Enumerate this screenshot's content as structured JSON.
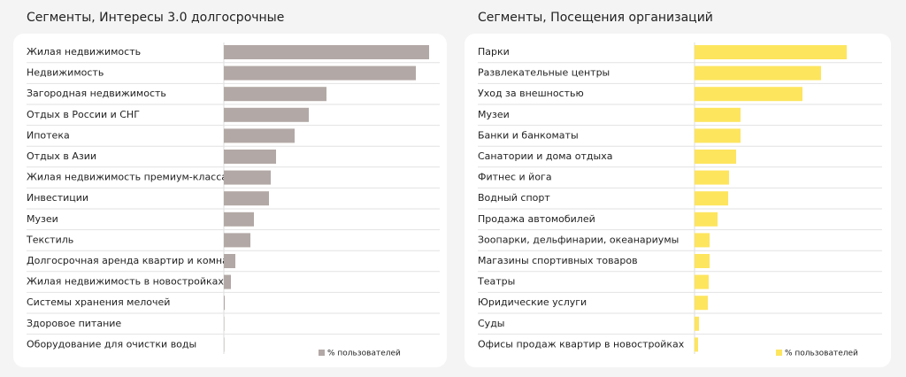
{
  "chart_data": [
    {
      "type": "bar",
      "title": "Сегменты, Интересы 3.0 долгосрочные",
      "categories": [
        "Жилая недвижимость",
        "Недвижимость",
        "Загородная недвижимость",
        "Отдых в России и СНГ",
        "Ипотека",
        "Отдых в Азии",
        "Жилая недвижимость премиум-класса",
        "Инвестиции",
        "Музеи",
        "Текстиль",
        "Долгосрочная аренда квартир и комнат",
        "Жилая недвижимость в новостройках",
        "Системы хранения мелочей",
        "Здоровое питание",
        "Оборудование для очистки воды"
      ],
      "values": [
        232,
        217,
        116,
        96,
        80,
        59,
        53,
        51,
        34,
        30,
        13,
        8,
        1,
        0.5,
        0.5
      ],
      "color": "#b2a8a5",
      "xlim": [
        0,
        240
      ],
      "legend_label": "% пользователей"
    },
    {
      "type": "bar",
      "title": "Сегменты, Посещения организаций",
      "categories": [
        "Парки",
        "Развлекательные центры",
        "Уход за внешностью",
        "Музеи",
        "Банки и банкоматы",
        "Санатории и дома отдыха",
        "Фитнес и йога",
        "Водный спорт",
        "Продажа автомобилей",
        "Зоопарки, дельфинарии, океанариумы",
        "Магазины спортивных товаров",
        "Театры",
        "Юридические услуги",
        "Суды",
        "Офисы продаж квартир в новостройках"
      ],
      "values": [
        172,
        143,
        122,
        52,
        52,
        47,
        39,
        38,
        26,
        17,
        17,
        16,
        15,
        5,
        4
      ],
      "color": "#fde55e",
      "xlim": [
        0,
        240
      ],
      "legend_label": "% пользователей"
    }
  ]
}
